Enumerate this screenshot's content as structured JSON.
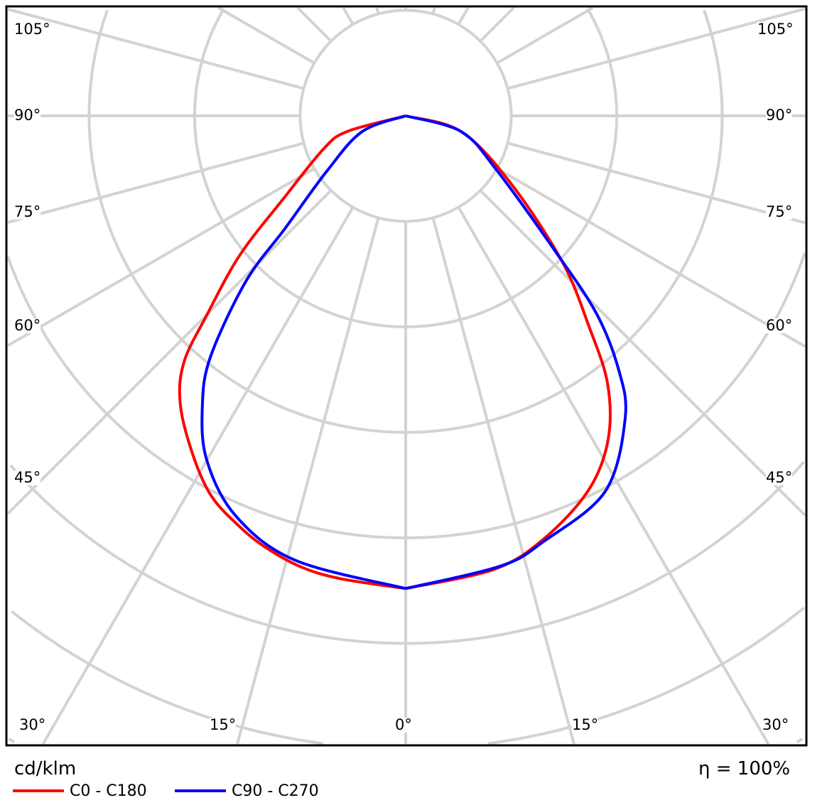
{
  "chart_data": {
    "type": "polar-line",
    "unit_label": "cd/klm",
    "efficiency_label": "η = 100%",
    "angle_labels_left": [
      "105°",
      "90°",
      "75°",
      "60°",
      "45°"
    ],
    "angle_labels_bottom": [
      "30°",
      "15°",
      "0°",
      "15°",
      "30°"
    ],
    "angle_labels_right": [
      "105°",
      "90°",
      "75°",
      "60°",
      "45°"
    ],
    "spoke_step_deg": 15,
    "grid": true,
    "legend_placement": "bottom-left",
    "radial_unit_note": "values in grid-ring units (ring values not printed)",
    "series": [
      {
        "name": "C0 - C180",
        "color": "#ff0000",
        "C0": [
          [
            0,
            4.48
          ],
          [
            11,
            4.38
          ],
          [
            18,
            4.22
          ],
          [
            26,
            3.95
          ],
          [
            32,
            3.62
          ],
          [
            37,
            3.18
          ],
          [
            41,
            2.65
          ],
          [
            47,
            2.03
          ],
          [
            57,
            1.2
          ],
          [
            74,
            0.55
          ],
          [
            90,
            0
          ]
        ],
        "C180": [
          [
            0,
            4.48
          ],
          [
            8,
            4.43
          ],
          [
            13,
            4.39
          ],
          [
            18,
            4.3
          ],
          [
            22,
            4.2
          ],
          [
            27,
            4.05
          ],
          [
            32,
            3.8
          ],
          [
            38,
            3.47
          ],
          [
            42,
            3.14
          ],
          [
            45,
            2.66
          ],
          [
            50,
            2.05
          ],
          [
            56,
            1.39
          ],
          [
            68,
            0.84
          ],
          [
            75,
            0.57
          ],
          [
            90,
            0
          ]
        ]
      },
      {
        "name": "C90 - C270",
        "color": "#0000ff",
        "C90": [
          [
            0,
            4.48
          ],
          [
            12,
            4.36
          ],
          [
            18,
            4.24
          ],
          [
            28,
            4.03
          ],
          [
            36,
            3.54
          ],
          [
            40,
            3.14
          ],
          [
            44,
            2.6
          ],
          [
            48,
            1.89
          ],
          [
            59,
            1.01
          ],
          [
            74,
            0.55
          ],
          [
            90,
            0
          ]
        ],
        "C270": [
          [
            0,
            4.48
          ],
          [
            14,
            4.34
          ],
          [
            23,
            4.12
          ],
          [
            30,
            3.77
          ],
          [
            35,
            3.36
          ],
          [
            39,
            2.94
          ],
          [
            44,
            2.18
          ],
          [
            47,
            1.56
          ],
          [
            55,
            0.91
          ],
          [
            70,
            0.44
          ],
          [
            90,
            0
          ]
        ]
      }
    ]
  }
}
